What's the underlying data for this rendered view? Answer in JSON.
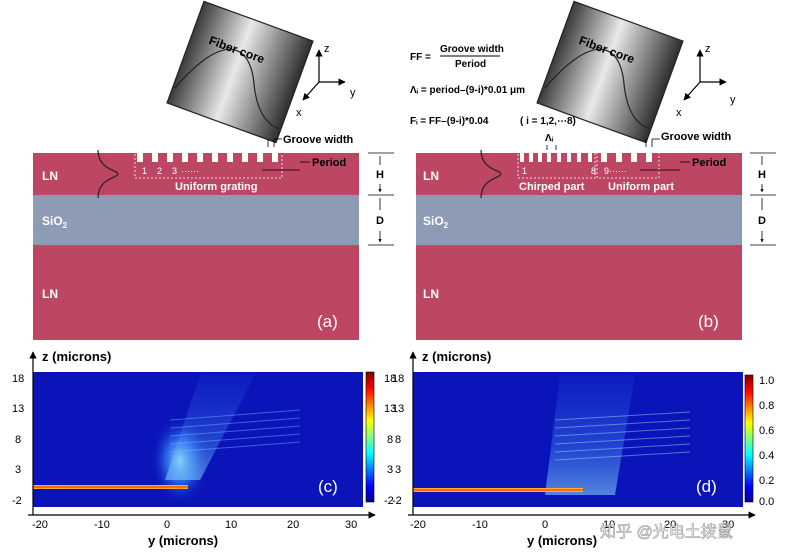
{
  "panel_a": {
    "fiber_label": "Fiber core",
    "groove_width": "Groove width",
    "period": "Period",
    "ln_top": "LN",
    "sio2": "SiO",
    "sio2_sub": "2",
    "ln_bottom": "LN",
    "tooth_numbers": [
      "1",
      "2",
      "3",
      "······"
    ],
    "grating_label": "Uniform grating",
    "h_label": "H",
    "d_label": "D",
    "tag": "(a)",
    "axes": {
      "z": "z",
      "y": "y",
      "x": "x"
    }
  },
  "panel_b": {
    "ff_lhs": "FF =",
    "ff_num": "Groove width",
    "ff_den": "Period",
    "lambda_eq": "Λᵢ = period–(9-i)*0.01 μm",
    "f_eq": "Fᵢ = FF–(9-i)*0.04",
    "i_range": "( i = 1,2,⋯8)",
    "fiber_label": "Fiber core",
    "groove_width": "Groove width",
    "period": "Period",
    "lambda_i": "Λᵢ",
    "ln_top": "LN",
    "sio2": "SiO",
    "sio2_sub": "2",
    "ln_bottom": "LN",
    "n1": "1",
    "n8": "8",
    "n9": "9······",
    "chirped": "Chirped part",
    "uniform": "Uniform part",
    "h_label": "H",
    "d_label": "D",
    "tag": "(b)",
    "axes": {
      "z": "z",
      "y": "y",
      "x": "x"
    }
  },
  "panel_c": {
    "ylabel": "z (microns)",
    "xlabel": "y (microns)",
    "yticks": [
      "18",
      "13",
      "8",
      "3",
      "-2"
    ],
    "xticks": [
      "-20",
      "-10",
      "0",
      "10",
      "20",
      "30"
    ],
    "cbar_ticks": [
      "18",
      "13",
      "8",
      "3",
      "-2"
    ],
    "tag": "(c)"
  },
  "panel_d": {
    "ylabel": "z (microns)",
    "xlabel": "y (microns)",
    "yticks": [
      "18",
      "13",
      "8",
      "3",
      "-2"
    ],
    "xticks": [
      "-20",
      "-10",
      "0",
      "10",
      "20",
      "30"
    ],
    "cbar_ticks": [
      "1.0",
      "0.8",
      "0.6",
      "0.4",
      "0.2",
      "0.0"
    ],
    "tag": "(d)"
  },
  "watermark": "知乎 @光电土拨鼠",
  "colors": {
    "ln": "#bd4762",
    "sio2": "#8d9bb4",
    "field_bg": "#0a14b8"
  }
}
